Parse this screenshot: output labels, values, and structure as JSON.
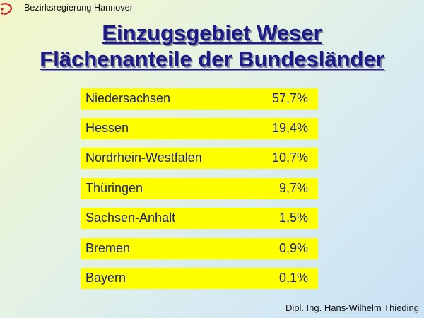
{
  "header": {
    "organization": "Bezirksregierung Hannover"
  },
  "title": {
    "line1": "Einzugsgebiet Weser",
    "line2": "Flächenanteile der Bundesländer"
  },
  "states": [
    {
      "name": "Niedersachsen",
      "value": "57,7",
      "unit": "%"
    },
    {
      "name": "Hessen",
      "value": "19,4",
      "unit": "%"
    },
    {
      "name": "Nordrhein-Westfalen",
      "value": "10,7",
      "unit": "%"
    },
    {
      "name": "Thüringen",
      "value": "9,7",
      "unit": "%"
    },
    {
      "name": "Sachsen-Anhalt",
      "value": "1,5",
      "unit": "%"
    },
    {
      "name": "Bremen",
      "value": "0,9",
      "unit": "%"
    },
    {
      "name": "Bayern",
      "value": "0,1",
      "unit": "%"
    }
  ],
  "footer": {
    "author": "Dipl. Ing. Hans-Wilhelm Thieding"
  },
  "colors": {
    "title": "#1a1a88",
    "row_background": "#ffff00",
    "logo": "#cc1a2a"
  }
}
